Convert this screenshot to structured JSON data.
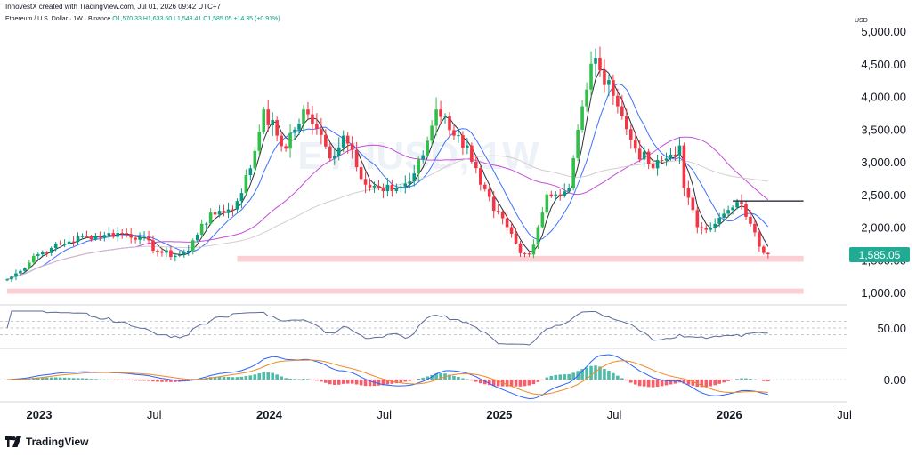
{
  "header": {
    "created_by": "InnovestX created with TradingView.com, Jul 01, 2026 09:42 UTC+7",
    "symbol": "Ethereum / U.S. Dollar · 1W · Binance",
    "ohlc": "O1,570.33 H1,633.60 L1,548.41 C1,585.05 +14.35 (+0.91%)"
  },
  "watermark": "ETHUSD, 1W",
  "brand": "TradingView",
  "colors": {
    "up": "#089981",
    "up_bright": "#2fbf4a",
    "down": "#f23645",
    "ma_fast": "#131722",
    "ma_mid": "#2962ff",
    "ma_slow": "#c03ad6",
    "ma_long": "#d1c7c7",
    "zone": "#fac8cd",
    "rsi": "#5a6b9e",
    "macd": "#2962ff",
    "signal": "#f08a24",
    "hist_up": "#22ab94",
    "hist_down": "#f23645"
  },
  "chart_data": [
    {
      "type": "candlestick",
      "title": "",
      "currency": "USD",
      "y_scale": "linear",
      "ylim": [
        900,
        5100
      ],
      "ytick_labels": [
        "1,000.00",
        "1,500.00",
        "2,000.00",
        "2,500.00",
        "3,000.00",
        "3,500.00",
        "4,000.00",
        "4,500.00",
        "5,000.00"
      ],
      "ytick_values": [
        1000,
        1500,
        2000,
        2500,
        3000,
        3500,
        4000,
        4500,
        5000
      ],
      "x_axis_labels": [
        "2023",
        "Jul",
        "2024",
        "Jul",
        "2025",
        "Jul",
        "2026",
        "Jul"
      ],
      "x_axis_weeks": [
        0,
        26,
        52,
        78,
        104,
        130,
        156,
        182
      ],
      "last_price_label": "1,585.05",
      "last_price": 1585.05,
      "close_anchors_week_price": [
        [
          0,
          1200
        ],
        [
          3,
          1330
        ],
        [
          6,
          1560
        ],
        [
          10,
          1680
        ],
        [
          14,
          1780
        ],
        [
          18,
          1860
        ],
        [
          22,
          1880
        ],
        [
          26,
          1910
        ],
        [
          30,
          1850
        ],
        [
          34,
          1630
        ],
        [
          38,
          1560
        ],
        [
          41,
          1640
        ],
        [
          44,
          2050
        ],
        [
          48,
          2250
        ],
        [
          51,
          2270
        ],
        [
          55,
          2900
        ],
        [
          58,
          3800
        ],
        [
          61,
          3400
        ],
        [
          63,
          3200
        ],
        [
          67,
          3800
        ],
        [
          70,
          3500
        ],
        [
          73,
          3050
        ],
        [
          76,
          3400
        ],
        [
          78,
          3180
        ],
        [
          81,
          2650
        ],
        [
          85,
          2550
        ],
        [
          88,
          2600
        ],
        [
          91,
          2700
        ],
        [
          94,
          3100
        ],
        [
          97,
          3800
        ],
        [
          99,
          3700
        ],
        [
          101,
          3400
        ],
        [
          104,
          3250
        ],
        [
          107,
          2650
        ],
        [
          110,
          2250
        ],
        [
          113,
          2000
        ],
        [
          116,
          1600
        ],
        [
          118,
          1580
        ],
        [
          120,
          2000
        ],
        [
          122,
          2500
        ],
        [
          124,
          2500
        ],
        [
          127,
          2600
        ],
        [
          130,
          3850
        ],
        [
          132,
          4500
        ],
        [
          134,
          4400
        ],
        [
          136,
          4250
        ],
        [
          138,
          3850
        ],
        [
          140,
          3500
        ],
        [
          142,
          3200
        ],
        [
          146,
          2900
        ],
        [
          149,
          3050
        ],
        [
          152,
          3250
        ],
        [
          153,
          2600
        ],
        [
          156,
          2000
        ],
        [
          160,
          2050
        ],
        [
          164,
          2300
        ],
        [
          166,
          2350
        ],
        [
          168,
          2050
        ],
        [
          170,
          1700
        ],
        [
          172,
          1585
        ]
      ],
      "levels": [
        {
          "kind": "zone",
          "from_week": 52,
          "to_week": 180,
          "low": 1470,
          "high": 1560
        },
        {
          "kind": "zone",
          "from_week": 0,
          "to_week": 180,
          "low": 1000,
          "high": 1060
        },
        {
          "kind": "line",
          "from_week": 164,
          "to_week": 180,
          "price": 2400
        }
      ]
    },
    {
      "type": "line",
      "title": "",
      "name": "",
      "ylim": [
        0,
        100
      ],
      "ytick_labels": [
        "50.00"
      ],
      "ytick_values": [
        50
      ],
      "bands": [
        70,
        50,
        30
      ]
    },
    {
      "type": "histogram",
      "title": "",
      "ytick_labels": [
        "0.00"
      ],
      "ytick_values": [
        0
      ]
    }
  ]
}
